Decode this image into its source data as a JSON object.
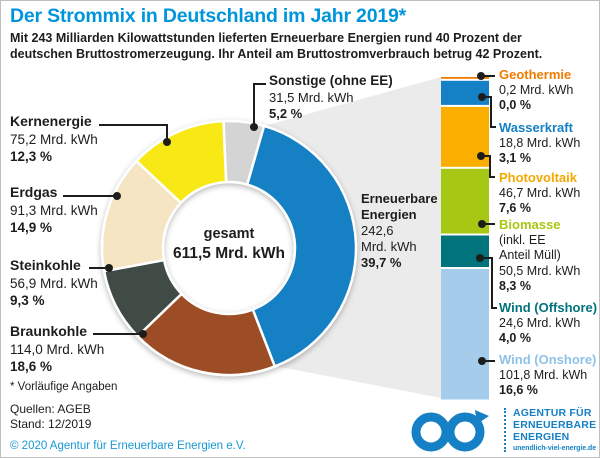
{
  "header": {
    "title": "Der Strommix in Deutschland im Jahr 2019*",
    "subtitle_line1": "Mit 243 Milliarden Kilowattstunden lieferten Erneuerbare Energien rund 40 Prozent der",
    "subtitle_line2": "deutschen Bruttostromerzeugung. Ihr Anteil am Bruttostromverbrauch betrug 42 Prozent."
  },
  "chart_data": {
    "type": "pie",
    "title": "Der Strommix in Deutschland im Jahr 2019*",
    "unit": "Mrd. kWh",
    "total": {
      "label": "gesamt",
      "value": 611.5,
      "value_label": "611,5 Mrd. kWh"
    },
    "donut_start_angle_deg": -2.5,
    "slices": [
      {
        "name": "Sonstige (ohne EE)",
        "value": 31.5,
        "value_label": "31,5 Mrd. kWh",
        "pct_label": "5,2 %",
        "color": "#d4d4d4"
      },
      {
        "name": "Erneuerbare Energien",
        "value": 242.6,
        "value_label": "242,6 Mrd. kWh",
        "pct_label": "39,7 %",
        "color": "#1480c5"
      },
      {
        "name": "Braunkohle",
        "value": 114.0,
        "value_label": "114,0 Mrd. kWh",
        "pct_label": "18,6 %",
        "color": "#9d4e27"
      },
      {
        "name": "Steinkohle",
        "value": 56.9,
        "value_label": "56,9 Mrd. kWh",
        "pct_label": "9,3 %",
        "color": "#414c44"
      },
      {
        "name": "Erdgas",
        "value": 91.3,
        "value_label": "91,3 Mrd. kWh",
        "pct_label": "14,9 %",
        "color": "#f6e5c3"
      },
      {
        "name": "Kernenergie",
        "value": 75.2,
        "value_label": "75,2 Mrd. kWh",
        "pct_label": "12,3 %",
        "color": "#f8e912"
      }
    ],
    "ee_label": {
      "name_line1": "Erneuerbare",
      "name_line2": "Energien",
      "value_line1": "242,6",
      "value_line2": "Mrd. kWh",
      "pct": "39,7 %"
    },
    "stacked_bar": {
      "total_value": 242.6,
      "segments": [
        {
          "name": "Geothermie",
          "value": 0.2,
          "value_label": "0,2 Mrd. kWh",
          "pct_label": "0,0 %",
          "color": "#ef7c00",
          "label_color": "#ef7c00"
        },
        {
          "name": "Wasserkraft",
          "value": 18.8,
          "value_label": "18,8 Mrd. kWh",
          "pct_label": "3,1 %",
          "color": "#1480c5",
          "label_color": "#1480c5"
        },
        {
          "name": "Photovoltaik",
          "value": 46.7,
          "value_label": "46,7 Mrd. kWh",
          "pct_label": "7,6 %",
          "color": "#f9ae00",
          "label_color": "#f6a800"
        },
        {
          "name": "Biomasse",
          "note_line1": "(inkl. EE",
          "note_line2": "Anteil Müll)",
          "value": 50.5,
          "value_label": "50,5 Mrd. kWh",
          "pct_label": "8,3 %",
          "color": "#a6c713",
          "label_color": "#a6c713"
        },
        {
          "name": "Wind (Offshore)",
          "value": 24.6,
          "value_label": "24,6 Mrd. kWh",
          "pct_label": "4,0 %",
          "color": "#00737d",
          "label_color": "#00737d"
        },
        {
          "name": "Wind (Onshore)",
          "value": 101.8,
          "value_label": "101,8 Mrd. kWh",
          "pct_label": "16,6 %",
          "color": "#a5cdeb",
          "label_color": "#8ec2e9"
        }
      ]
    }
  },
  "footer": {
    "footnote": "* Vorläufige Angaben",
    "source": "Quellen: AGEB",
    "stand": "Stand: 12/2019",
    "copyright": "© 2020 Agentur für Erneuerbare Energien e.V."
  },
  "logo": {
    "line1": "AGENTUR FÜR",
    "line2": "ERNEUERBARE",
    "line3": "ENERGIEN",
    "url": "unendlich-viel-energie.de",
    "color": "#1580c5"
  },
  "colors": {
    "title_blue": "#0095db",
    "text_dark": "#1d1d1b",
    "funnel_gray": "#ebebeb",
    "copyright_blue": "#1899d6"
  }
}
